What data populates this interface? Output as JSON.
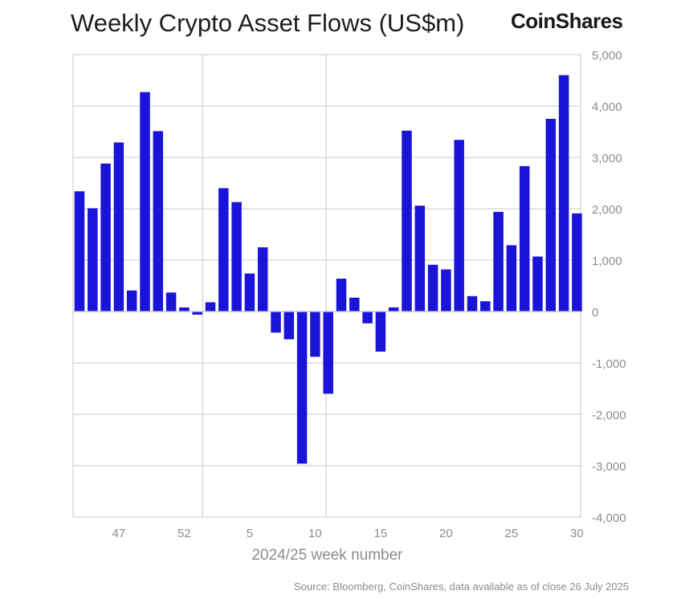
{
  "title": "Weekly Crypto Asset Flows (US$m)",
  "logo_text": "CoinShares",
  "source": "Source: Bloomberg, CoinShares, data available as of close 26 July 2025",
  "colors": {
    "bar": "#1a14d8",
    "grid": "#c8c8c8",
    "axis_text": "#8c8c8c",
    "title": "#1e1e1e"
  },
  "chart_data": {
    "type": "bar",
    "title": "Weekly Crypto Asset Flows (US$m)",
    "xlabel": "2024/25 week number",
    "ylabel": "",
    "ylim": [
      -4000,
      5000
    ],
    "yticks": [
      5000,
      4000,
      3000,
      2000,
      1000,
      0,
      -1000,
      -2000,
      -3000,
      -4000
    ],
    "ytick_labels": [
      "5,000",
      "4,000",
      "3,000",
      "2,000",
      "1,000",
      "0",
      "-1,000",
      "-2,000",
      "-3,000",
      "-4,000"
    ],
    "xtick_labels": [
      "47",
      "52",
      "5",
      "10",
      "15",
      "20",
      "25",
      "30"
    ],
    "xtick_positions": [
      3,
      8,
      13,
      18,
      23,
      28,
      33,
      38
    ],
    "grid": true,
    "y_axis_position": "right",
    "categories": [
      "45",
      "46",
      "47",
      "48",
      "49",
      "50",
      "51",
      "52",
      "1",
      "2",
      "3",
      "4",
      "5",
      "6",
      "7",
      "8",
      "9",
      "10",
      "11",
      "12",
      "13",
      "14",
      "15",
      "16",
      "17",
      "18",
      "19",
      "20",
      "21",
      "22",
      "23",
      "24",
      "25",
      "26",
      "27",
      "28",
      "29",
      "30",
      "31"
    ],
    "values": [
      2340,
      2010,
      2880,
      3290,
      410,
      4270,
      3510,
      370,
      80,
      -60,
      180,
      2400,
      2130,
      740,
      1250,
      -410,
      -540,
      -2960,
      -880,
      -1600,
      640,
      270,
      -230,
      -780,
      80,
      3520,
      2060,
      910,
      820,
      3340,
      300,
      200,
      1940,
      1290,
      2830,
      1070,
      3750,
      4600,
      1910
    ]
  }
}
